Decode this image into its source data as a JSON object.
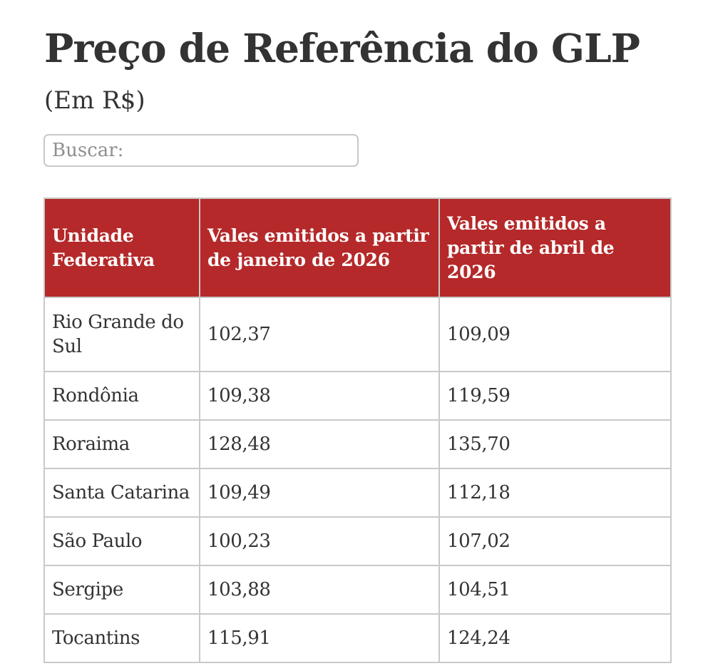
{
  "header": {
    "title": "Preço de Referência do GLP",
    "subtitle": "(Em R$)"
  },
  "search": {
    "placeholder": "Buscar:",
    "value": ""
  },
  "table": {
    "columns": [
      "Unidade Federativa",
      "Vales emitidos a partir de janeiro de 2026",
      "Vales emitidos a partir de abril de 2026"
    ],
    "rows": [
      [
        "Rio Grande do Sul",
        "102,37",
        "109,09"
      ],
      [
        "Rondônia",
        "109,38",
        "119,59"
      ],
      [
        "Roraima",
        "128,48",
        "135,70"
      ],
      [
        "Santa Catarina",
        "109,49",
        "112,18"
      ],
      [
        "São Paulo",
        "100,23",
        "107,02"
      ],
      [
        "Sergipe",
        "103,88",
        "104,51"
      ],
      [
        "Tocantins",
        "115,91",
        "124,24"
      ]
    ]
  },
  "colors": {
    "header_background": "#b5292a",
    "header_text": "#ffffff",
    "body_text": "#333333",
    "border": "#c9c9c9"
  }
}
